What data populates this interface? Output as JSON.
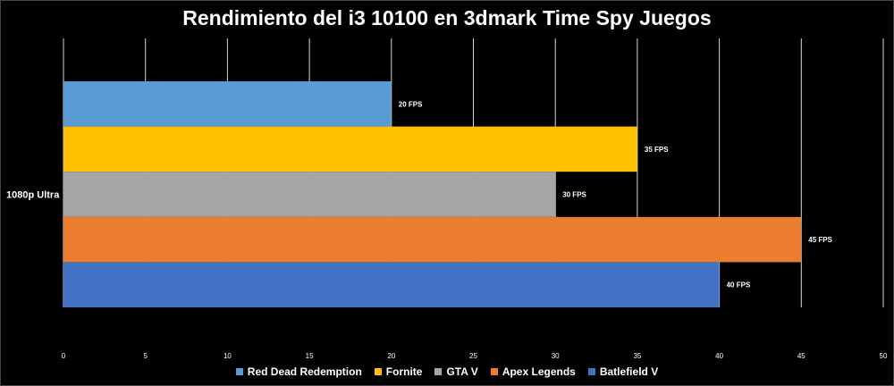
{
  "chart_data": {
    "type": "bar",
    "orientation": "horizontal",
    "title": "Rendimiento del i3 10100 en 3dmark Time Spy Juegos",
    "categories": [
      "1080p Ultra"
    ],
    "series": [
      {
        "name": "Red Dead Redemption",
        "values": [
          20
        ],
        "label": "20 FPS",
        "color": "#5b9bd5"
      },
      {
        "name": "Fornite",
        "values": [
          35
        ],
        "label": "35 FPS",
        "color": "#ffc000"
      },
      {
        "name": "GTA V",
        "values": [
          30
        ],
        "label": "30 FPS",
        "color": "#a5a5a5"
      },
      {
        "name": "Apex Legends",
        "values": [
          45
        ],
        "label": "45 FPS",
        "color": "#ed7d31"
      },
      {
        "name": "Batlefield V",
        "values": [
          40
        ],
        "label": "40 FPS",
        "color": "#4472c4"
      }
    ],
    "xlim": [
      0,
      50
    ],
    "x_ticks": [
      "0",
      "5",
      "10",
      "15",
      "20",
      "25",
      "30",
      "35",
      "40",
      "45",
      "50"
    ],
    "grid": true,
    "legend_position": "bottom",
    "background": "#000000",
    "text_color": "#ffffff"
  }
}
